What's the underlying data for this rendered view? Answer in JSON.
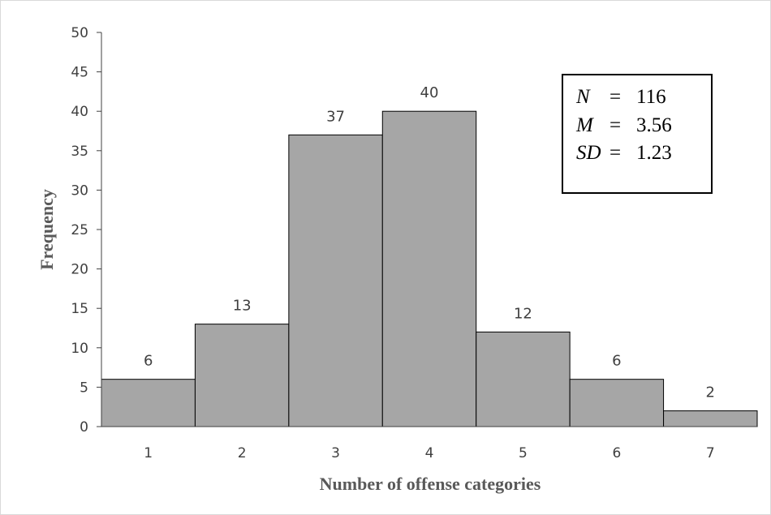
{
  "chart_data": {
    "type": "bar",
    "categories": [
      "1",
      "2",
      "3",
      "4",
      "5",
      "6",
      "7"
    ],
    "values": [
      6,
      13,
      37,
      40,
      12,
      6,
      2
    ],
    "data_labels": [
      "6",
      "13",
      "37",
      "40",
      "12",
      "6",
      "2"
    ],
    "xlabel": "Number of offense categories",
    "ylabel": "Frequency",
    "ylim": [
      0,
      50
    ],
    "yticks": [
      "0",
      "5",
      "10",
      "15",
      "20",
      "25",
      "30",
      "35",
      "40",
      "45",
      "50"
    ],
    "grid": false,
    "legend": null,
    "bar_color": "#a6a6a6",
    "bar_edge_color": "#000000",
    "stats_box": [
      {
        "key": "N",
        "eq": "=",
        "value": "116"
      },
      {
        "key": "M",
        "eq": "=",
        "value": "3.56"
      },
      {
        "key": "SD",
        "eq": "=",
        "value": "1.23"
      }
    ]
  }
}
